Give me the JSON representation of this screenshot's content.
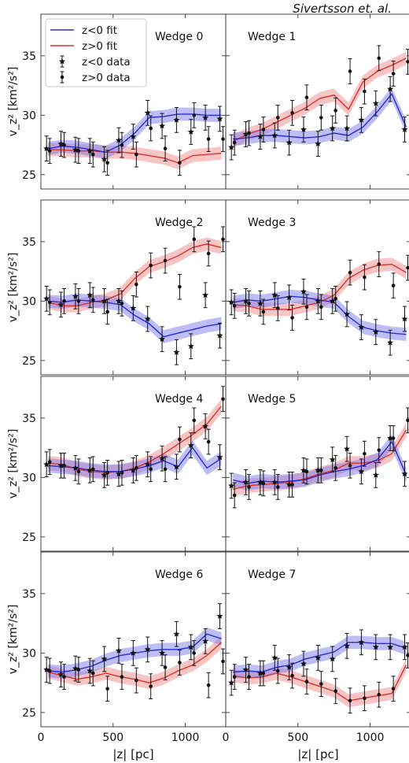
{
  "credit": "Sivertsson et. al.",
  "colors": {
    "neg": "#2b2bd6",
    "neg_band": "#7c7cf0",
    "pos": "#e0302a",
    "pos_band": "#f28b8b",
    "data": "#111111"
  },
  "legend": {
    "neg_fit": "z<0 fit",
    "pos_fit": "z>0 fit",
    "neg_data": "z<0 data",
    "pos_data": "z>0 data"
  },
  "axes": {
    "ylabel": "v_z² [km²/s²]",
    "xlabel": "|z| [pc]",
    "xlim": [
      0,
      1280
    ],
    "ylim": [
      23.8,
      38.5
    ],
    "yticks": [
      25,
      30,
      35
    ],
    "xticks": [
      0,
      500,
      1000
    ]
  },
  "chart_data": [
    {
      "type": "line",
      "title": "Wedge 0",
      "x": [
        50,
        150,
        250,
        350,
        450,
        550,
        650,
        750,
        850,
        950,
        1050,
        1150,
        1250
      ],
      "series": [
        {
          "name": "z<0 fit",
          "values": [
            27.2,
            27.4,
            27.3,
            27.1,
            26.9,
            27.5,
            28.5,
            29.8,
            29.9,
            30.1,
            30.1,
            30.0,
            30.0
          ]
        },
        {
          "name": "z>0 fit",
          "values": [
            27.1,
            27.1,
            27.0,
            27.0,
            26.9,
            26.9,
            26.8,
            26.6,
            26.4,
            26.0,
            26.6,
            26.7,
            26.8
          ]
        },
        {
          "name": "z<0 data",
          "values": [
            27.2,
            27.6,
            27.1,
            27.0,
            26.3,
            27.9,
            28.2,
            30.2,
            29.1,
            29.6,
            28.6,
            29.8,
            29.7
          ]
        },
        {
          "name": "z>0 data",
          "values": [
            27.0,
            27.5,
            27.0,
            26.7,
            26.0,
            27.5,
            26.7,
            28.9,
            27.2,
            26.0,
            30.0,
            28.0,
            28.0
          ]
        }
      ]
    },
    {
      "type": "line",
      "title": "Wedge 1",
      "x": [
        50,
        150,
        250,
        350,
        450,
        550,
        650,
        750,
        850,
        950,
        1050,
        1150,
        1250
      ],
      "series": [
        {
          "name": "z<0 fit",
          "values": [
            28.0,
            28.1,
            28.3,
            28.3,
            28.2,
            28.1,
            28.2,
            28.5,
            28.3,
            29.0,
            30.3,
            31.8,
            29.0
          ]
        },
        {
          "name": "z>0 fit",
          "values": [
            27.8,
            28.4,
            28.8,
            29.4,
            30.0,
            30.6,
            31.4,
            31.7,
            30.5,
            32.8,
            33.7,
            34.2,
            34.8
          ]
        },
        {
          "name": "z<0 data",
          "values": [
            27.3,
            28.4,
            28.2,
            28.3,
            27.7,
            28.8,
            27.6,
            28.9,
            28.9,
            29.6,
            31.0,
            32.2,
            28.8
          ]
        },
        {
          "name": "z>0 data",
          "values": [
            27.7,
            28.5,
            28.8,
            29.8,
            30.2,
            31.5,
            29.8,
            30.4,
            33.7,
            32.0,
            34.8,
            33.5,
            34.5
          ]
        }
      ]
    },
    {
      "type": "line",
      "title": "Wedge 2",
      "x": [
        50,
        150,
        250,
        350,
        450,
        550,
        650,
        750,
        850,
        950,
        1050,
        1150,
        1250
      ],
      "series": [
        {
          "name": "z<0 fit",
          "values": [
            30.0,
            29.9,
            30.1,
            30.0,
            29.9,
            29.7,
            28.8,
            28.1,
            27.0,
            27.3,
            27.6,
            27.9,
            28.1
          ]
        },
        {
          "name": "z>0 fit",
          "values": [
            29.9,
            29.6,
            29.6,
            29.9,
            30.1,
            30.6,
            31.9,
            32.9,
            33.3,
            33.8,
            34.5,
            34.8,
            34.5
          ]
        },
        {
          "name": "z<0 data",
          "values": [
            30.2,
            29.7,
            30.4,
            30.5,
            30.0,
            30.0,
            29.4,
            28.5,
            26.8,
            25.7,
            26.2,
            30.5,
            27.1
          ]
        },
        {
          "name": "z>0 data",
          "values": [
            29.9,
            30.0,
            30.0,
            30.1,
            29.1,
            29.8,
            31.4,
            33.0,
            33.4,
            31.2,
            35.2,
            34.0,
            35.2
          ]
        }
      ]
    },
    {
      "type": "line",
      "title": "Wedge 3",
      "x": [
        50,
        150,
        250,
        350,
        450,
        550,
        650,
        750,
        850,
        950,
        1050,
        1150,
        1250
      ],
      "series": [
        {
          "name": "z<0 fit",
          "values": [
            29.9,
            30.1,
            30.0,
            30.2,
            30.4,
            30.3,
            30.1,
            29.9,
            28.7,
            27.8,
            27.5,
            27.3,
            27.2
          ]
        },
        {
          "name": "z>0 fit",
          "values": [
            29.7,
            29.6,
            29.3,
            29.3,
            29.3,
            29.6,
            29.9,
            30.5,
            31.9,
            32.6,
            33.0,
            33.1,
            32.4
          ]
        },
        {
          "name": "z<0 data",
          "values": [
            29.9,
            30.0,
            29.8,
            30.5,
            30.3,
            30.8,
            30.0,
            30.0,
            28.9,
            27.8,
            27.4,
            26.5,
            28.5
          ]
        },
        {
          "name": "z>0 data",
          "values": [
            29.6,
            29.8,
            29.1,
            29.4,
            28.6,
            29.5,
            29.5,
            30.2,
            32.4,
            32.0,
            33.1,
            31.3,
            32.8
          ]
        }
      ]
    },
    {
      "type": "line",
      "title": "Wedge 4",
      "x": [
        50,
        150,
        250,
        350,
        450,
        550,
        650,
        750,
        850,
        950,
        1050,
        1150,
        1250
      ],
      "series": [
        {
          "name": "z<0 fit",
          "values": [
            31.0,
            30.9,
            30.8,
            30.6,
            30.5,
            30.5,
            30.7,
            31.0,
            31.4,
            30.9,
            32.5,
            30.8,
            31.6
          ]
        },
        {
          "name": "z>0 fit",
          "values": [
            31.2,
            31.1,
            30.7,
            30.5,
            30.4,
            30.5,
            30.8,
            31.3,
            32.0,
            32.8,
            33.6,
            34.5,
            36.0
          ]
        },
        {
          "name": "z<0 data",
          "values": [
            31.1,
            31.0,
            30.8,
            30.6,
            30.2,
            30.3,
            30.6,
            31.1,
            31.6,
            30.9,
            32.7,
            34.3,
            31.7
          ]
        },
        {
          "name": "z>0 data",
          "values": [
            31.3,
            31.0,
            30.5,
            30.7,
            30.4,
            30.4,
            30.8,
            30.7,
            30.7,
            33.2,
            34.8,
            33.0,
            36.6
          ]
        }
      ]
    },
    {
      "type": "line",
      "title": "Wedge 5",
      "x": [
        50,
        150,
        250,
        350,
        450,
        550,
        650,
        750,
        850,
        950,
        1050,
        1150,
        1250
      ],
      "series": [
        {
          "name": "z<0 fit",
          "values": [
            29.8,
            29.5,
            29.7,
            29.6,
            29.7,
            29.8,
            30.2,
            30.5,
            30.7,
            31.0,
            31.5,
            33.0,
            30.2
          ]
        },
        {
          "name": "z>0 fit",
          "values": [
            29.0,
            29.3,
            29.4,
            29.5,
            29.6,
            29.9,
            30.3,
            30.6,
            31.2,
            31.2,
            31.4,
            32.0,
            34.0
          ]
        },
        {
          "name": "z<0 data",
          "values": [
            29.3,
            29.6,
            29.6,
            29.6,
            29.4,
            30.6,
            30.6,
            31.5,
            32.4,
            30.5,
            30.2,
            33.3,
            30.3
          ]
        },
        {
          "name": "z>0 data",
          "values": [
            28.5,
            29.2,
            29.5,
            29.2,
            29.4,
            30.5,
            30.6,
            30.8,
            31.0,
            32.0,
            32.3,
            33.3,
            34.8
          ]
        }
      ]
    },
    {
      "type": "line",
      "title": "Wedge 6",
      "x": [
        50,
        150,
        250,
        350,
        450,
        550,
        650,
        750,
        850,
        950,
        1050,
        1150,
        1250
      ],
      "series": [
        {
          "name": "z<0 fit",
          "values": [
            28.5,
            28.4,
            28.6,
            28.9,
            29.4,
            29.8,
            30.0,
            30.2,
            30.3,
            30.3,
            30.5,
            31.6,
            31.2
          ]
        },
        {
          "name": "z>0 fit",
          "values": [
            28.4,
            28.1,
            27.8,
            28.0,
            28.3,
            28.0,
            27.8,
            27.5,
            27.9,
            28.5,
            29.0,
            29.8,
            30.9
          ]
        },
        {
          "name": "z<0 data",
          "values": [
            28.6,
            28.2,
            28.7,
            28.5,
            29.5,
            30.2,
            30.0,
            30.3,
            30.0,
            31.6,
            30.5,
            31.0,
            33.1
          ]
        },
        {
          "name": "z>0 data",
          "values": [
            28.5,
            28.0,
            28.6,
            28.3,
            27.0,
            28.0,
            27.7,
            27.2,
            28.8,
            29.2,
            30.0,
            27.3,
            29.3
          ]
        }
      ]
    },
    {
      "type": "line",
      "title": "Wedge 7",
      "x": [
        50,
        150,
        250,
        350,
        450,
        550,
        650,
        750,
        850,
        950,
        1050,
        1150,
        1250
      ],
      "series": [
        {
          "name": "z<0 fit",
          "values": [
            28.4,
            28.5,
            28.4,
            28.8,
            29.0,
            29.5,
            29.8,
            30.1,
            30.9,
            30.9,
            30.8,
            30.8,
            30.4
          ]
        },
        {
          "name": "z>0 fit",
          "values": [
            28.1,
            27.9,
            28.0,
            28.3,
            28.0,
            27.6,
            27.2,
            26.8,
            26.0,
            26.2,
            26.4,
            26.6,
            29.0
          ]
        },
        {
          "name": "z<0 data",
          "values": [
            27.5,
            28.6,
            28.3,
            29.6,
            28.8,
            29.1,
            29.6,
            29.5,
            30.6,
            30.9,
            30.5,
            30.5,
            30.5
          ]
        },
        {
          "name": "z>0 data",
          "values": [
            28.0,
            28.0,
            28.3,
            28.5,
            28.1,
            27.6,
            27.4,
            26.8,
            26.0,
            26.2,
            26.5,
            27.0,
            29.8
          ]
        }
      ]
    }
  ]
}
